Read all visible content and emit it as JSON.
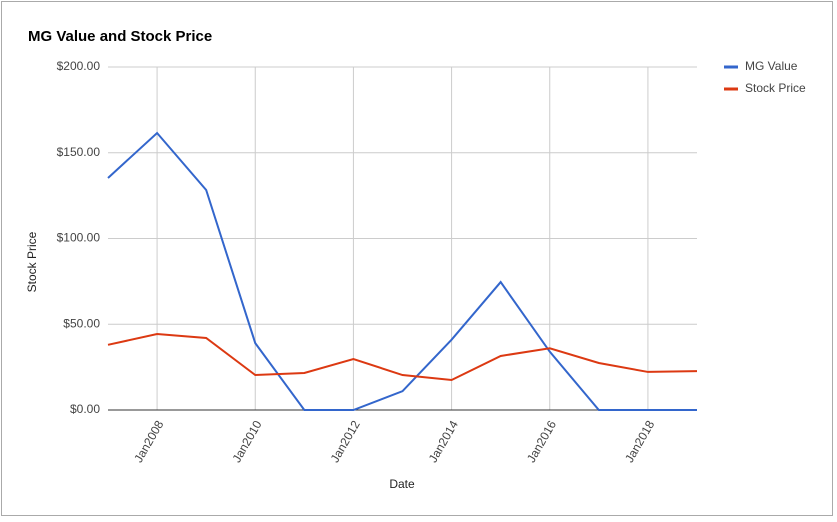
{
  "chart_data": {
    "type": "line",
    "title": "MG Value and Stock Price",
    "x_label": "Date",
    "y_label": "Stock Price",
    "x": [
      2007,
      2008,
      2009,
      2010,
      2011,
      2012,
      2013,
      2014,
      2015,
      2016,
      2017,
      2018,
      2019
    ],
    "xlim": [
      2007,
      2019
    ],
    "xticks": [
      {
        "value": 2008,
        "label": "Jan2008"
      },
      {
        "value": 2010,
        "label": "Jan2010"
      },
      {
        "value": 2012,
        "label": "Jan2012"
      },
      {
        "value": 2014,
        "label": "Jan2014"
      },
      {
        "value": 2016,
        "label": "Jan2016"
      },
      {
        "value": 2018,
        "label": "Jan2018"
      }
    ],
    "ylim": [
      0,
      200
    ],
    "yticks": [
      {
        "value": 0,
        "label": "$0.00"
      },
      {
        "value": 50,
        "label": "$50.00"
      },
      {
        "value": 100,
        "label": "$100.00"
      },
      {
        "value": 150,
        "label": "$150.00"
      },
      {
        "value": 200,
        "label": "$200.00"
      }
    ],
    "grid": true,
    "legend": "right",
    "series": [
      {
        "name": "MG Value",
        "color": "#3366cc",
        "values": [
          135.3,
          161.5,
          128.3,
          39,
          0,
          0,
          11,
          41,
          74.6,
          34,
          0,
          0,
          0
        ]
      },
      {
        "name": "Stock Price",
        "color": "#dc3912",
        "values": [
          38,
          44.3,
          42,
          20.4,
          21.6,
          29.7,
          20.4,
          17.5,
          31.5,
          36,
          27.4,
          22.2,
          22.7
        ]
      }
    ]
  }
}
